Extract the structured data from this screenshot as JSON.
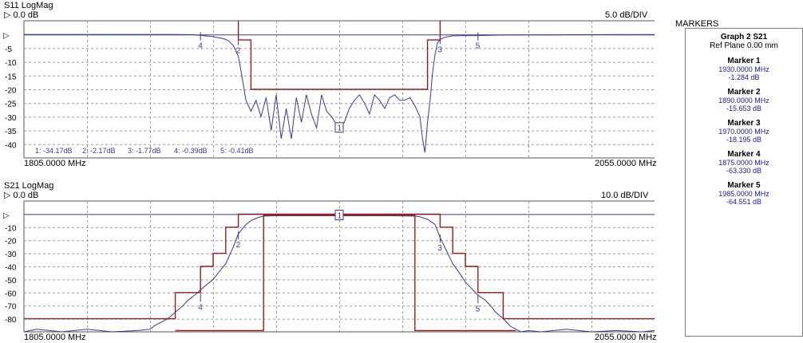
{
  "graph1": {
    "title": "S11 LogMag",
    "ref_label": "▷ 0.0 dB",
    "scale_label": "5.0 dB/DIV",
    "x_start_label": "1805.0000 MHz",
    "x_end_label": "2055.0000 MHz",
    "marker_readout": [
      "1: -34.17dB",
      "2: -2.17dB",
      "3: -1.77dB",
      "4: -0.39dB",
      "5: -0.41dB"
    ]
  },
  "graph2": {
    "title": "S21 LogMag",
    "ref_label": "▷ 0.0 dB",
    "scale_label": "10.0 dB/DIV",
    "x_start_label": "1805.0000 MHz",
    "x_end_label": "2055.0000 MHz"
  },
  "markers_panel": {
    "title": "MARKERS",
    "graph_name": "Graph 2 S21",
    "ref_plane": "Ref Plane 0.00 mm",
    "markers": [
      {
        "name": "Marker 1",
        "freq": "1930.0000 MHz",
        "value": "-1.284 dB"
      },
      {
        "name": "Marker 2",
        "freq": "1890.0000 MHz",
        "value": "-15.653 dB"
      },
      {
        "name": "Marker 3",
        "freq": "1970.0000 MHz",
        "value": "-18.195 dB"
      },
      {
        "name": "Marker 4",
        "freq": "1875.0000 MHz",
        "value": "-63.330 dB"
      },
      {
        "name": "Marker 5",
        "freq": "1985.0000 MHz",
        "value": "-64.551 dB"
      }
    ]
  },
  "colors": {
    "trace": "#3a3a8a",
    "mask": "#8b2020",
    "grid": "#9a9a9a"
  },
  "chart_data": [
    {
      "type": "line",
      "title": "S11 LogMag",
      "xlim": [
        1805,
        2055
      ],
      "ylim": [
        -45,
        5
      ],
      "y_ticks": [
        "▷",
        "-5",
        "-10",
        "-15",
        "-20",
        "-25",
        "-30",
        "-35",
        "-40"
      ],
      "y_tick_values": [
        0,
        -5,
        -10,
        -15,
        -20,
        -25,
        -30,
        -35,
        -40
      ],
      "grid": true,
      "series": [
        {
          "name": "",
          "role": "trace",
          "x": [
            1805,
            1865,
            1872,
            1876,
            1880,
            1884,
            1886,
            1888,
            1890,
            1891,
            1893,
            1895,
            1897,
            1899,
            1901,
            1903,
            1905,
            1907,
            1909,
            1911,
            1913,
            1915,
            1917,
            1919,
            1921,
            1923,
            1925,
            1927,
            1929,
            1930,
            1932,
            1934,
            1936,
            1938,
            1940,
            1942,
            1944,
            1946,
            1948,
            1950,
            1952,
            1954,
            1956,
            1958,
            1960,
            1962,
            1963,
            1964,
            1965,
            1966,
            1967,
            1968,
            1969,
            1970,
            1972,
            1975,
            1979,
            1985,
            1995,
            2055
          ],
          "y": [
            0,
            0,
            -0.1,
            -0.4,
            -0.8,
            -1.5,
            -2.2,
            -4,
            -8,
            -13,
            -24,
            -28,
            -24,
            -30,
            -23,
            -35,
            -22,
            -38,
            -27,
            -38,
            -23,
            -32,
            -22,
            -29,
            -34,
            -22,
            -28,
            -30,
            -33,
            -34,
            -32,
            -27,
            -24,
            -22,
            -25,
            -29,
            -22,
            -24,
            -27,
            -23,
            -22,
            -24,
            -24,
            -23,
            -26,
            -30,
            -38,
            -43,
            -32,
            -24,
            -14,
            -7,
            -3,
            -1.8,
            -1,
            -0.5,
            -0.4,
            -0.4,
            -0.2,
            0
          ]
        },
        {
          "name": "",
          "role": "mask",
          "x": [
            1890,
            1890,
            1895,
            1895,
            1965,
            1965,
            1970,
            1970
          ],
          "y": [
            5,
            -2,
            -2,
            -20,
            -20,
            -2,
            -2,
            5
          ]
        }
      ],
      "markers": [
        {
          "id": "1",
          "x": 1930,
          "y": -34.17
        },
        {
          "id": "2",
          "x": 1890,
          "y": -2.17
        },
        {
          "id": "3",
          "x": 1970,
          "y": -1.77
        },
        {
          "id": "4",
          "x": 1875,
          "y": -0.39
        },
        {
          "id": "5",
          "x": 1985,
          "y": -0.41
        }
      ]
    },
    {
      "type": "line",
      "title": "S21 LogMag",
      "xlim": [
        1805,
        2055
      ],
      "ylim": [
        -90,
        10
      ],
      "y_ticks": [
        "▷",
        "-10",
        "-20",
        "-30",
        "-40",
        "-50",
        "-60",
        "-70",
        "-80"
      ],
      "y_tick_values": [
        0,
        -10,
        -20,
        -30,
        -40,
        -50,
        -60,
        -70,
        -80
      ],
      "grid": true,
      "series": [
        {
          "name": "",
          "role": "trace",
          "x": [
            1805,
            1810,
            1820,
            1830,
            1840,
            1850,
            1855,
            1857,
            1860,
            1862,
            1865,
            1868,
            1870,
            1872,
            1875,
            1878,
            1880,
            1882,
            1885,
            1888,
            1890,
            1893,
            1895,
            1898,
            1900,
            1905,
            1910,
            1920,
            1930,
            1940,
            1950,
            1960,
            1962,
            1965,
            1968,
            1970,
            1973,
            1975,
            1978,
            1980,
            1982,
            1985,
            1988,
            1990,
            1992,
            1995,
            1998,
            2000,
            2002,
            2005,
            2010,
            2020,
            2030,
            2040,
            2050,
            2055
          ],
          "y": [
            -90,
            -88,
            -90,
            -88,
            -90,
            -89,
            -88,
            -85,
            -82,
            -80,
            -75,
            -70,
            -66,
            -63,
            -58,
            -53,
            -50,
            -45,
            -38,
            -25,
            -15,
            -8,
            -5,
            -2.5,
            -1.5,
            -1.3,
            -1.3,
            -1.3,
            -1.3,
            -1.3,
            -1.3,
            -1.5,
            -2,
            -4,
            -8,
            -18,
            -30,
            -38,
            -46,
            -52,
            -56,
            -62,
            -66,
            -70,
            -75,
            -80,
            -86,
            -88,
            -90,
            -89,
            -90,
            -88,
            -90,
            -89,
            -90,
            -89
          ]
        },
        {
          "name": "",
          "role": "mask",
          "x": [
            1805,
            1865,
            1865,
            1875,
            1875,
            1880,
            1880,
            1885,
            1885,
            1890,
            1890,
            1970,
            1970,
            1975,
            1975,
            1980,
            1980,
            1985,
            1985,
            1995,
            1995,
            2055
          ],
          "y": [
            -80,
            -80,
            -60,
            -60,
            -40,
            -40,
            -30,
            -30,
            -10,
            -10,
            0,
            0,
            -10,
            -10,
            -30,
            -30,
            -40,
            -40,
            -60,
            -60,
            -80,
            -80
          ]
        },
        {
          "name": "",
          "role": "mask",
          "x": [
            1865,
            1900,
            1900,
            1905,
            1955,
            1960,
            1960,
            2000
          ],
          "y": [
            -89,
            -89,
            -1,
            -1,
            -1,
            -1,
            -89,
            -89
          ]
        }
      ],
      "markers": [
        {
          "id": "1",
          "x": 1930,
          "y": -1.284
        },
        {
          "id": "2",
          "x": 1890,
          "y": -15.653
        },
        {
          "id": "3",
          "x": 1970,
          "y": -18.195
        },
        {
          "id": "4",
          "x": 1875,
          "y": -63.33
        },
        {
          "id": "5",
          "x": 1985,
          "y": -64.551
        }
      ]
    }
  ]
}
